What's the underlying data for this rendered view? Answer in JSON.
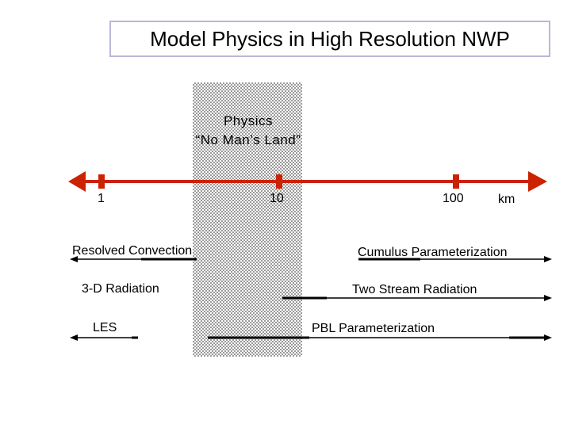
{
  "title": "Model Physics in High Resolution NWP",
  "zone": {
    "line1": "Physics",
    "line2": "“No Man’s Land”"
  },
  "axis": {
    "ticks": [
      "1",
      "10",
      "100"
    ],
    "unit": "km",
    "color": "#cc2200"
  },
  "labels": {
    "resolved_convection": "Resolved  Convection",
    "radiation_3d": "3-D Radiation",
    "les": "LES",
    "cumulus": "Cumulus Parameterization",
    "two_stream": "Two Stream Radiation",
    "pbl": "PBL Parameterization"
  }
}
